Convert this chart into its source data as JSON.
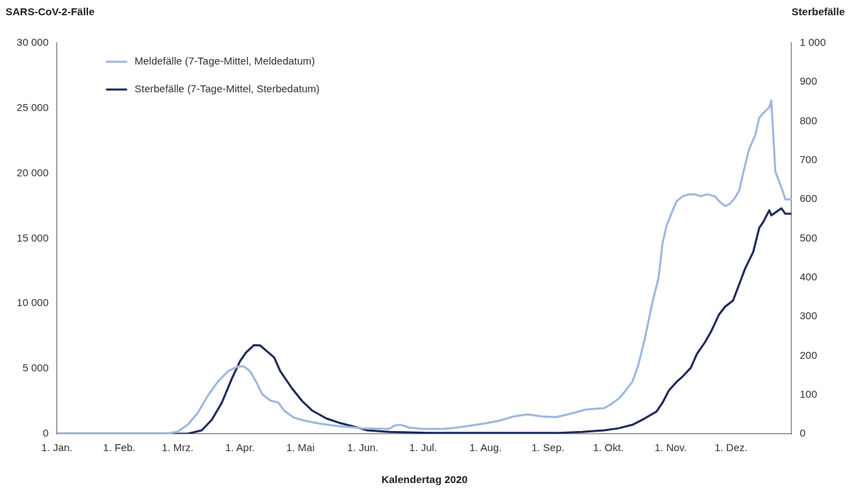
{
  "chart_data": {
    "type": "line",
    "xlabel": "Kalendertag 2020",
    "ylabel": "SARS-CoV-2-Fälle",
    "y2label": "Sterbefälle",
    "grid": false,
    "legend": "top left",
    "xlim": [
      "2020-01-01",
      "2020-12-31"
    ],
    "xticks": [
      {
        "value": "2020-01-01",
        "label": "1. Jan."
      },
      {
        "value": "2020-02-01",
        "label": "1. Feb."
      },
      {
        "value": "2020-03-01",
        "label": "1. Mrz."
      },
      {
        "value": "2020-04-01",
        "label": "1. Apr."
      },
      {
        "value": "2020-05-01",
        "label": "1. Mai"
      },
      {
        "value": "2020-06-01",
        "label": "1. Jun."
      },
      {
        "value": "2020-07-01",
        "label": "1. Jul."
      },
      {
        "value": "2020-08-01",
        "label": "1. Aug."
      },
      {
        "value": "2020-09-01",
        "label": "1. Sep."
      },
      {
        "value": "2020-10-01",
        "label": "1. Okt."
      },
      {
        "value": "2020-11-01",
        "label": "1. Nov."
      },
      {
        "value": "2020-12-01",
        "label": "1. Dez."
      }
    ],
    "ylim": [
      0,
      30000
    ],
    "yticks": [
      0,
      {
        "value": 5000,
        "label": "5 000"
      },
      {
        "value": 10000,
        "label": "10 000"
      },
      {
        "value": 15000,
        "label": "15 000"
      },
      {
        "value": 20000,
        "label": "20 000"
      },
      {
        "value": 25000,
        "label": "25 000"
      },
      {
        "value": 30000,
        "label": "30 000"
      }
    ],
    "y2lim": [
      0,
      1000
    ],
    "y2ticks": [
      0,
      100,
      200,
      300,
      400,
      500,
      600,
      700,
      800,
      900,
      {
        "value": 1000,
        "label": "1 000"
      }
    ],
    "series": [
      {
        "name": "Meldefälle (7-Tage-Mittel, Meldedatum)",
        "color": "#9db8e0",
        "x": [
          "2020-01-01",
          "2020-02-24",
          "2020-03-01",
          "2020-03-06",
          "2020-03-11",
          "2020-03-16",
          "2020-03-21",
          "2020-03-26",
          "2020-03-31",
          "2020-04-03",
          "2020-04-06",
          "2020-04-09",
          "2020-04-12",
          "2020-04-16",
          "2020-04-20",
          "2020-04-23",
          "2020-04-28",
          "2020-05-03",
          "2020-05-10",
          "2020-05-17",
          "2020-05-24",
          "2020-05-31",
          "2020-06-14",
          "2020-06-17",
          "2020-06-20",
          "2020-06-24",
          "2020-07-01",
          "2020-07-11",
          "2020-07-18",
          "2020-08-01",
          "2020-08-08",
          "2020-08-15",
          "2020-08-22",
          "2020-08-29",
          "2020-09-05",
          "2020-09-11",
          "2020-09-15",
          "2020-09-20",
          "2020-09-29",
          "2020-10-02",
          "2020-10-06",
          "2020-10-09",
          "2020-10-13",
          "2020-10-16",
          "2020-10-19",
          "2020-10-23",
          "2020-10-26",
          "2020-10-28",
          "2020-10-30",
          "2020-11-02",
          "2020-11-04",
          "2020-11-07",
          "2020-11-10",
          "2020-11-13",
          "2020-11-16",
          "2020-11-19",
          "2020-11-23",
          "2020-11-25",
          "2020-11-28",
          "2020-11-30",
          "2020-12-03",
          "2020-12-05",
          "2020-12-07",
          "2020-12-10",
          "2020-12-13",
          "2020-12-15",
          "2020-12-17",
          "2020-12-20",
          "2020-12-21",
          "2020-12-23",
          "2020-12-26",
          "2020-12-28",
          "2020-12-31"
        ],
        "values": [
          0,
          0,
          160,
          690,
          1600,
          2930,
          4000,
          4800,
          5170,
          5170,
          4800,
          4000,
          3040,
          2560,
          2400,
          1760,
          1230,
          1010,
          800,
          640,
          530,
          430,
          370,
          640,
          690,
          480,
          370,
          370,
          480,
          800,
          1010,
          1330,
          1490,
          1330,
          1280,
          1490,
          1650,
          1870,
          1970,
          2240,
          2670,
          3200,
          4000,
          5330,
          7200,
          10130,
          12000,
          14660,
          16000,
          17160,
          17860,
          18230,
          18390,
          18390,
          18230,
          18390,
          18230,
          17860,
          17490,
          17600,
          18120,
          18660,
          20000,
          21860,
          22920,
          24250,
          24630,
          25050,
          25600,
          20150,
          18920,
          18000,
          18000
        ]
      },
      {
        "name": "Sterbefälle (7-Tage-Mittel, Sterbedatum)",
        "color": "#1f2a5a",
        "axis": "y2",
        "x": [
          "2020-01-01",
          "2020-03-06",
          "2020-03-13",
          "2020-03-18",
          "2020-03-23",
          "2020-03-28",
          "2020-04-01",
          "2020-04-04",
          "2020-04-08",
          "2020-04-11",
          "2020-04-14",
          "2020-04-18",
          "2020-04-21",
          "2020-04-27",
          "2020-05-02",
          "2020-05-07",
          "2020-05-14",
          "2020-05-21",
          "2020-05-28",
          "2020-06-03",
          "2020-06-14",
          "2020-07-04",
          "2020-08-01",
          "2020-09-05",
          "2020-09-18",
          "2020-09-29",
          "2020-10-06",
          "2020-10-13",
          "2020-10-19",
          "2020-10-25",
          "2020-10-28",
          "2020-10-31",
          "2020-11-04",
          "2020-11-07",
          "2020-11-11",
          "2020-11-14",
          "2020-11-18",
          "2020-11-21",
          "2020-11-25",
          "2020-11-28",
          "2020-12-02",
          "2020-12-05",
          "2020-12-08",
          "2020-12-12",
          "2020-12-15",
          "2020-12-17",
          "2020-12-20",
          "2020-12-21",
          "2020-12-26",
          "2020-12-28",
          "2020-12-31"
        ],
        "values": [
          0,
          0,
          9,
          36,
          80,
          142,
          186,
          208,
          227,
          226,
          213,
          195,
          160,
          115,
          83,
          59,
          39,
          27,
          18,
          9,
          5,
          2,
          2,
          2,
          5,
          9,
          14,
          23,
          39,
          57,
          80,
          110,
          133,
          147,
          169,
          204,
          234,
          261,
          305,
          325,
          341,
          382,
          423,
          465,
          527,
          542,
          572,
          559,
          577,
          563,
          563
        ]
      }
    ]
  }
}
